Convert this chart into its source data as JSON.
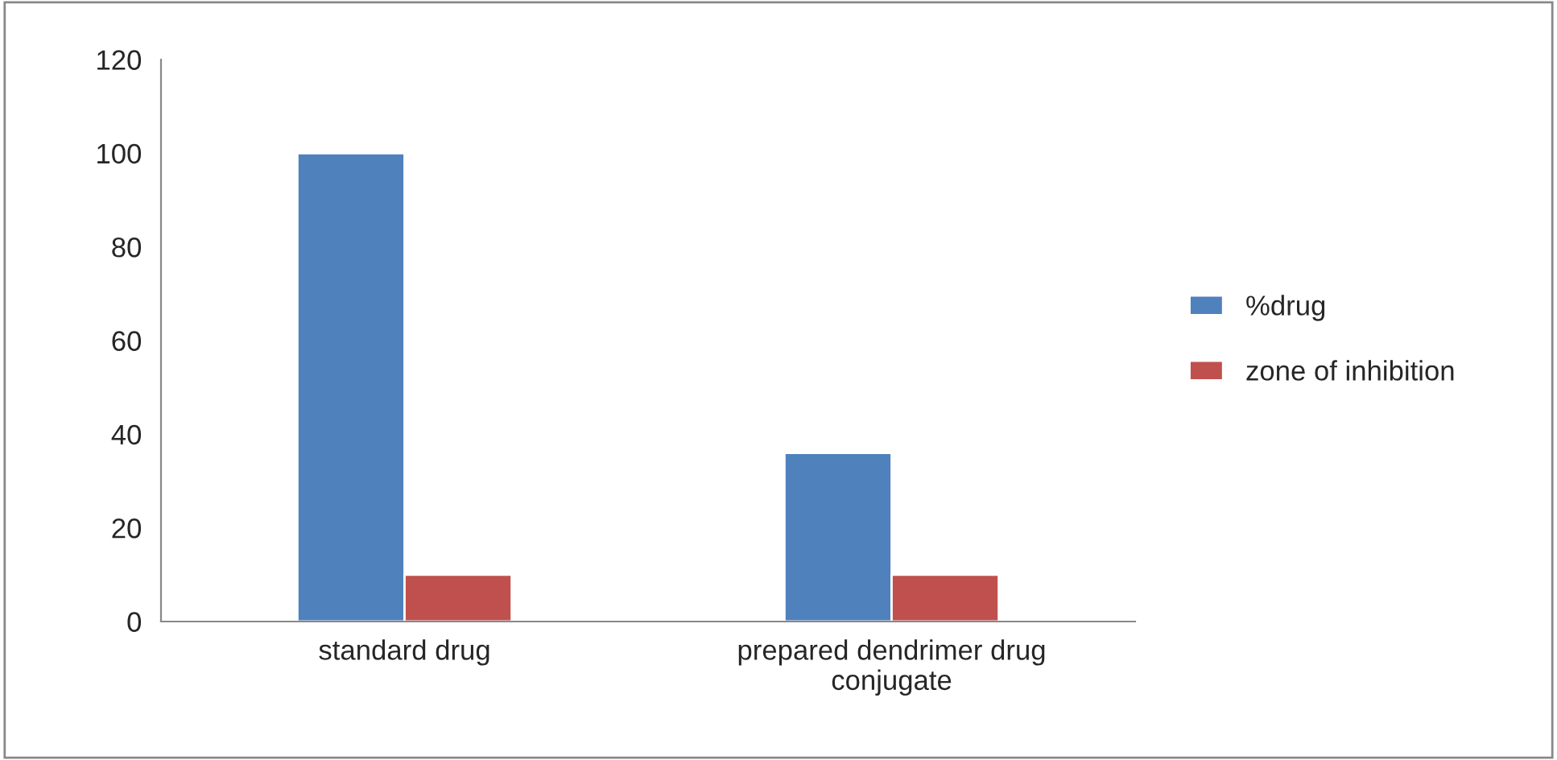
{
  "chart_data": {
    "type": "bar",
    "categories": [
      "standard drug",
      "prepared dendrimer drug\nconjugate"
    ],
    "series": [
      {
        "name": "%drug",
        "color": "#4f81bd",
        "values": [
          100,
          36
        ]
      },
      {
        "name": "zone of inhibition",
        "color": "#c0504d",
        "values": [
          10,
          10
        ]
      }
    ],
    "ylim": [
      0,
      120
    ],
    "yticks": [
      0,
      20,
      40,
      60,
      80,
      100,
      120
    ],
    "grid": false,
    "legend": "right"
  }
}
